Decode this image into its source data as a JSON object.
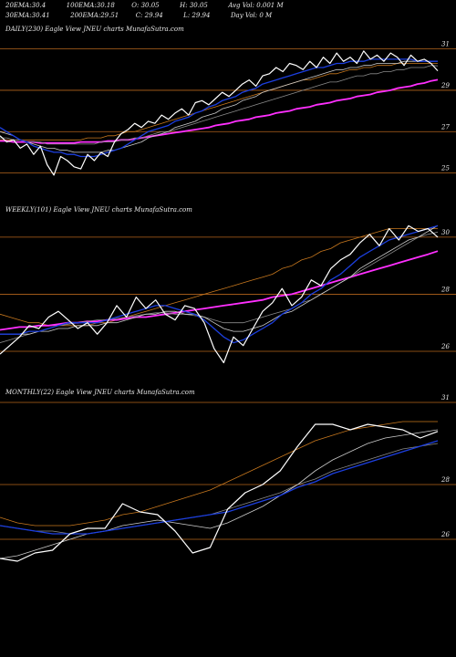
{
  "header": {
    "row1": [
      {
        "label": "20EMA:",
        "value": "30.4"
      },
      {
        "label": "100EMA:",
        "value": "30.18"
      },
      {
        "label": "O:",
        "value": "30.05"
      },
      {
        "label": "H:",
        "value": "30.05"
      },
      {
        "label": "Avg Vol:",
        "value": "0.001 M"
      }
    ],
    "row2": [
      {
        "label": "30EMA:",
        "value": "30.41"
      },
      {
        "label": "200EMA:",
        "value": "29.51"
      },
      {
        "label": "C:",
        "value": "29.94"
      },
      {
        "label": "L:",
        "value": "29.94"
      },
      {
        "label": "Day Vol:",
        "value": "0  M"
      }
    ]
  },
  "chart_data": [
    {
      "type": "line",
      "panel": "daily",
      "label": "DAILY(230) Eagle  View  JNEU charts MunafaSutra.com",
      "yticks": [
        25,
        27,
        29,
        31
      ],
      "ylim": [
        24.1,
        31.6
      ],
      "series": [
        {
          "key": "price",
          "color": "#ffffff",
          "values": [
            26.8,
            26.5,
            26.6,
            26.2,
            26.4,
            25.9,
            26.3,
            25.4,
            24.9,
            25.8,
            25.6,
            25.3,
            25.2,
            25.9,
            25.6,
            26.0,
            25.8,
            26.5,
            26.9,
            27.1,
            27.4,
            27.2,
            27.5,
            27.4,
            27.8,
            27.6,
            27.9,
            28.1,
            27.8,
            28.4,
            28.5,
            28.3,
            28.6,
            28.9,
            28.7,
            29.0,
            29.3,
            29.5,
            29.2,
            29.7,
            29.8,
            30.1,
            29.9,
            30.3,
            30.2,
            30.0,
            30.4,
            30.1,
            30.6,
            30.3,
            30.8,
            30.4,
            30.6,
            30.3,
            30.9,
            30.5,
            30.7,
            30.4,
            30.8,
            30.6,
            30.2,
            30.7,
            30.4,
            30.5,
            30.3,
            29.94
          ]
        },
        {
          "key": "ema20",
          "color": "#1c3fe0",
          "values": [
            27.2,
            27.0,
            26.8,
            26.6,
            26.5,
            26.3,
            26.2,
            26.1,
            26.0,
            26.0,
            25.9,
            25.9,
            25.8,
            25.8,
            25.8,
            25.9,
            26.0,
            26.1,
            26.2,
            26.4,
            26.6,
            26.8,
            27.0,
            27.1,
            27.2,
            27.3,
            27.5,
            27.6,
            27.7,
            27.9,
            28.0,
            28.2,
            28.3,
            28.5,
            28.6,
            28.7,
            28.9,
            29.0,
            29.1,
            29.3,
            29.4,
            29.5,
            29.6,
            29.7,
            29.8,
            29.9,
            30.0,
            30.1,
            30.1,
            30.2,
            30.3,
            30.3,
            30.4,
            30.4,
            30.4,
            30.5,
            30.5,
            30.5,
            30.5,
            30.5,
            30.5,
            30.5,
            30.4,
            30.4,
            30.4,
            30.4
          ]
        },
        {
          "key": "ema30",
          "color": "#cccccc",
          "values": [
            27.0,
            26.9,
            26.8,
            26.6,
            26.5,
            26.4,
            26.3,
            26.2,
            26.2,
            26.1,
            26.1,
            26.0,
            26.0,
            26.0,
            26.0,
            26.0,
            26.1,
            26.1,
            26.2,
            26.3,
            26.4,
            26.5,
            26.7,
            26.8,
            26.9,
            27.0,
            27.2,
            27.3,
            27.4,
            27.5,
            27.7,
            27.8,
            27.9,
            28.1,
            28.2,
            28.3,
            28.5,
            28.6,
            28.7,
            28.9,
            29.0,
            29.1,
            29.2,
            29.3,
            29.4,
            29.5,
            29.6,
            29.7,
            29.8,
            29.9,
            30.0,
            30.0,
            30.1,
            30.1,
            30.2,
            30.2,
            30.3,
            30.3,
            30.3,
            30.3,
            30.4,
            30.4,
            30.4,
            30.4,
            30.4,
            30.41
          ]
        },
        {
          "key": "ema100",
          "color": "#8a8a8a",
          "values": [
            26.7,
            26.7,
            26.6,
            26.6,
            26.5,
            26.5,
            26.5,
            26.4,
            26.4,
            26.4,
            26.4,
            26.4,
            26.4,
            26.4,
            26.4,
            26.5,
            26.5,
            26.5,
            26.6,
            26.6,
            26.7,
            26.7,
            26.8,
            26.9,
            27.0,
            27.0,
            27.1,
            27.2,
            27.3,
            27.4,
            27.5,
            27.6,
            27.7,
            27.8,
            27.9,
            28.0,
            28.1,
            28.2,
            28.3,
            28.4,
            28.5,
            28.6,
            28.7,
            28.8,
            28.9,
            29.0,
            29.1,
            29.2,
            29.3,
            29.4,
            29.4,
            29.5,
            29.6,
            29.7,
            29.7,
            29.8,
            29.8,
            29.9,
            29.9,
            30.0,
            30.0,
            30.1,
            30.1,
            30.1,
            30.2,
            30.18
          ]
        },
        {
          "key": "ema200",
          "color": "#ff2fff",
          "values": [
            26.55,
            26.55,
            26.5,
            26.5,
            26.5,
            26.5,
            26.45,
            26.45,
            26.45,
            26.45,
            26.45,
            26.45,
            26.5,
            26.5,
            26.5,
            26.5,
            26.55,
            26.55,
            26.6,
            26.6,
            26.65,
            26.7,
            26.75,
            26.8,
            26.85,
            26.9,
            26.95,
            27.0,
            27.05,
            27.1,
            27.15,
            27.2,
            27.3,
            27.35,
            27.4,
            27.5,
            27.55,
            27.6,
            27.7,
            27.75,
            27.8,
            27.9,
            27.95,
            28.0,
            28.1,
            28.15,
            28.2,
            28.3,
            28.35,
            28.4,
            28.5,
            28.55,
            28.6,
            28.7,
            28.75,
            28.8,
            28.9,
            28.95,
            29.0,
            29.1,
            29.15,
            29.2,
            29.3,
            29.35,
            29.45,
            29.51
          ]
        },
        {
          "key": "avg",
          "color": "#c8781e",
          "values": [
            26.6,
            26.6,
            26.6,
            26.6,
            26.6,
            26.6,
            26.6,
            26.6,
            26.6,
            26.6,
            26.6,
            26.6,
            26.6,
            26.7,
            26.7,
            26.7,
            26.8,
            26.8,
            26.9,
            27.0,
            27.0,
            27.1,
            27.2,
            27.3,
            27.4,
            27.5,
            27.6,
            27.7,
            27.8,
            27.9,
            28.0,
            28.1,
            28.2,
            28.3,
            28.4,
            28.5,
            28.6,
            28.7,
            28.8,
            28.9,
            29.0,
            29.1,
            29.2,
            29.3,
            29.4,
            29.5,
            29.5,
            29.6,
            29.7,
            29.8,
            29.8,
            29.9,
            30.0,
            30.0,
            30.1,
            30.1,
            30.2,
            30.2,
            30.2,
            30.3,
            30.3,
            30.3,
            30.3,
            30.3,
            30.3,
            30.3
          ]
        }
      ]
    },
    {
      "type": "line",
      "panel": "weekly",
      "label": "WEEKLY(101) Eagle  View  JNEU charts MunafaSutra.com",
      "yticks": [
        26,
        28,
        30
      ],
      "ylim": [
        25.2,
        30.7
      ],
      "series": [
        {
          "key": "price",
          "color": "#ffffff",
          "values": [
            25.9,
            26.2,
            26.5,
            26.9,
            26.8,
            27.2,
            27.4,
            27.1,
            26.8,
            27.0,
            26.6,
            27.0,
            27.6,
            27.2,
            27.9,
            27.5,
            27.8,
            27.3,
            27.1,
            27.6,
            27.5,
            27.0,
            26.1,
            25.6,
            26.5,
            26.2,
            26.8,
            27.4,
            27.7,
            28.2,
            27.6,
            27.9,
            28.5,
            28.3,
            28.9,
            29.2,
            29.4,
            29.8,
            30.1,
            29.7,
            30.3,
            29.9,
            30.4,
            30.2,
            30.3,
            30.0
          ]
        },
        {
          "key": "ema20",
          "color": "#1c3fe0",
          "values": [
            26.6,
            26.6,
            26.6,
            26.7,
            26.7,
            26.8,
            26.9,
            27.0,
            27.0,
            27.0,
            27.0,
            27.1,
            27.2,
            27.3,
            27.4,
            27.5,
            27.6,
            27.6,
            27.5,
            27.4,
            27.3,
            27.1,
            26.8,
            26.5,
            26.3,
            26.4,
            26.6,
            26.8,
            27.0,
            27.3,
            27.5,
            27.7,
            28.0,
            28.2,
            28.5,
            28.7,
            29.0,
            29.3,
            29.5,
            29.7,
            29.9,
            30.0,
            30.1,
            30.2,
            30.3,
            30.4
          ]
        },
        {
          "key": "ema30",
          "color": "#cccccc",
          "values": [
            26.6,
            26.6,
            26.6,
            26.6,
            26.7,
            26.7,
            26.8,
            26.8,
            26.9,
            26.9,
            26.9,
            27.0,
            27.0,
            27.1,
            27.2,
            27.3,
            27.3,
            27.4,
            27.4,
            27.3,
            27.3,
            27.2,
            27.0,
            26.8,
            26.7,
            26.7,
            26.8,
            26.9,
            27.1,
            27.3,
            27.4,
            27.6,
            27.8,
            28.0,
            28.2,
            28.4,
            28.6,
            28.9,
            29.1,
            29.3,
            29.5,
            29.7,
            29.9,
            30.0,
            30.2,
            30.41
          ]
        },
        {
          "key": "ema100",
          "color": "#8a8a8a",
          "values": [
            26.3,
            26.4,
            26.5,
            26.6,
            26.7,
            26.8,
            26.9,
            26.95,
            27.0,
            27.05,
            27.1,
            27.1,
            27.15,
            27.2,
            27.25,
            27.3,
            27.35,
            27.35,
            27.3,
            27.3,
            27.25,
            27.2,
            27.1,
            27.0,
            27.0,
            27.0,
            27.1,
            27.2,
            27.3,
            27.4,
            27.5,
            27.7,
            27.8,
            28.0,
            28.2,
            28.4,
            28.6,
            28.8,
            29.0,
            29.2,
            29.4,
            29.6,
            29.8,
            30.0,
            30.1,
            30.18
          ]
        },
        {
          "key": "ema200",
          "color": "#ff2fff",
          "values": [
            26.75,
            26.8,
            26.85,
            26.85,
            26.9,
            26.9,
            26.95,
            27.0,
            27.0,
            27.05,
            27.05,
            27.1,
            27.1,
            27.15,
            27.2,
            27.2,
            27.25,
            27.3,
            27.35,
            27.4,
            27.45,
            27.5,
            27.55,
            27.6,
            27.65,
            27.7,
            27.75,
            27.8,
            27.9,
            27.95,
            28.0,
            28.1,
            28.2,
            28.3,
            28.4,
            28.5,
            28.6,
            28.7,
            28.8,
            28.9,
            29.0,
            29.1,
            29.2,
            29.3,
            29.4,
            29.51
          ]
        },
        {
          "key": "avg",
          "color": "#c8781e",
          "values": [
            27.3,
            27.2,
            27.1,
            27.0,
            27.0,
            26.9,
            26.9,
            26.9,
            26.9,
            26.9,
            27.0,
            27.0,
            27.1,
            27.2,
            27.3,
            27.4,
            27.5,
            27.6,
            27.7,
            27.8,
            27.9,
            28.0,
            28.1,
            28.2,
            28.3,
            28.4,
            28.5,
            28.6,
            28.7,
            28.9,
            29.0,
            29.2,
            29.3,
            29.5,
            29.6,
            29.8,
            29.9,
            30.0,
            30.1,
            30.2,
            30.3,
            30.3,
            30.3,
            30.3,
            30.3,
            30.3
          ]
        }
      ]
    },
    {
      "type": "line",
      "panel": "monthly",
      "label": "MONTHLY(22) Eagle  View  JNEU charts MunafaSutra.com",
      "yticks": [
        26,
        28,
        31
      ],
      "ylim": [
        25.2,
        31.1
      ],
      "series": [
        {
          "key": "price",
          "color": "#ffffff",
          "values": [
            25.3,
            25.2,
            25.5,
            25.6,
            26.2,
            26.4,
            26.4,
            27.3,
            27.0,
            26.9,
            26.3,
            25.5,
            25.7,
            27.1,
            27.7,
            28.0,
            28.5,
            29.4,
            30.2,
            30.2,
            30.0,
            30.2,
            30.1,
            30.0,
            29.7,
            29.94
          ]
        },
        {
          "key": "ema20",
          "color": "#1c3fe0",
          "values": [
            26.5,
            26.4,
            26.3,
            26.2,
            26.2,
            26.2,
            26.3,
            26.4,
            26.5,
            26.6,
            26.7,
            26.8,
            26.9,
            27.0,
            27.2,
            27.4,
            27.6,
            27.9,
            28.1,
            28.4,
            28.6,
            28.8,
            29.0,
            29.2,
            29.4,
            29.6
          ]
        },
        {
          "key": "ema30",
          "color": "#cccccc",
          "values": [
            25.3,
            25.4,
            25.6,
            25.8,
            26.0,
            26.2,
            26.3,
            26.5,
            26.6,
            26.7,
            26.6,
            26.5,
            26.4,
            26.6,
            26.9,
            27.2,
            27.6,
            28.0,
            28.5,
            28.9,
            29.2,
            29.5,
            29.7,
            29.8,
            29.9,
            30.0
          ]
        },
        {
          "key": "ema100",
          "color": "#8a8a8a",
          "values": [
            26.5,
            26.4,
            26.3,
            26.3,
            26.2,
            26.2,
            26.3,
            26.4,
            26.5,
            26.6,
            26.7,
            26.8,
            26.9,
            27.1,
            27.3,
            27.5,
            27.7,
            28.0,
            28.2,
            28.5,
            28.7,
            28.9,
            29.1,
            29.3,
            29.4,
            29.5
          ]
        },
        {
          "key": "avg",
          "color": "#c8781e",
          "values": [
            26.8,
            26.6,
            26.5,
            26.5,
            26.5,
            26.6,
            26.7,
            26.9,
            27.0,
            27.2,
            27.4,
            27.6,
            27.8,
            28.1,
            28.4,
            28.7,
            29.0,
            29.3,
            29.6,
            29.8,
            30.0,
            30.1,
            30.2,
            30.3,
            30.3,
            30.3
          ]
        }
      ]
    }
  ]
}
